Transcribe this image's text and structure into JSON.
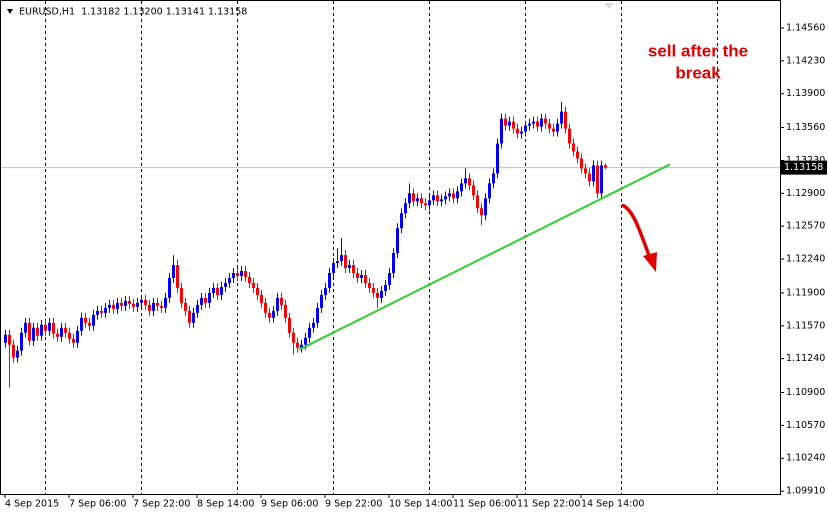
{
  "chart_data": {
    "type": "candlestick",
    "title": "EURUSD,H1  1.13182 1.13200 1.13141 1.13158",
    "annotation": [
      "sell after the",
      "break"
    ],
    "up_color": "#0000ff",
    "down_color": "#ff0000",
    "ylim": [
      1.09881,
      1.14841
    ],
    "yticks": [
      {
        "value": 1.1456,
        "label": "1.14560"
      },
      {
        "value": 1.1423,
        "label": "1.14230"
      },
      {
        "value": 1.139,
        "label": "1.13900"
      },
      {
        "value": 1.1356,
        "label": "1.13560"
      },
      {
        "value": 1.1323,
        "label": "1.13230"
      },
      {
        "value": 1.129,
        "label": "1.12900"
      },
      {
        "value": 1.1257,
        "label": "1.12570"
      },
      {
        "value": 1.1224,
        "label": "1.12240"
      },
      {
        "value": 1.119,
        "label": "1.11900"
      },
      {
        "value": 1.1157,
        "label": "1.11570"
      },
      {
        "value": 1.1124,
        "label": "1.11240"
      },
      {
        "value": 1.109,
        "label": "1.10900"
      },
      {
        "value": 1.1057,
        "label": "1.10570"
      },
      {
        "value": 1.1024,
        "label": "1.10240"
      },
      {
        "value": 1.0991,
        "label": "1.09910"
      }
    ],
    "current_price": {
      "value": 1.13158,
      "label": "1.13158",
      "color": "#c0c0c0"
    },
    "trendline": {
      "x": [
        73.5,
        166.25
      ],
      "y": [
        1.1133,
        1.1319
      ],
      "color": "#33cc33"
    },
    "categories": [
      "4 Sep 2015",
      null,
      null,
      null,
      null,
      null,
      null,
      null,
      null,
      null,
      null,
      null,
      null,
      null,
      null,
      null,
      "7 Sep 06:00",
      null,
      null,
      null,
      null,
      null,
      null,
      null,
      null,
      null,
      null,
      null,
      null,
      null,
      null,
      null,
      "7 Sep 22:00",
      null,
      null,
      null,
      null,
      null,
      null,
      null,
      null,
      null,
      null,
      null,
      null,
      null,
      null,
      null,
      "8 Sep 14:00",
      null,
      null,
      null,
      null,
      null,
      null,
      null,
      null,
      null,
      null,
      null,
      null,
      null,
      null,
      null,
      "9 Sep 06:00",
      null,
      null,
      null,
      null,
      null,
      null,
      null,
      null,
      null,
      null,
      null,
      null,
      null,
      null,
      null,
      "9 Sep 22:00",
      null,
      null,
      null,
      null,
      null,
      null,
      null,
      null,
      null,
      null,
      null,
      null,
      null,
      null,
      null,
      "10 Sep 14:00",
      null,
      null,
      null,
      null,
      null,
      null,
      null,
      null,
      null,
      null,
      null,
      null,
      null,
      null,
      null,
      "11 Sep 06:00",
      null,
      null,
      null,
      null,
      null,
      null,
      null,
      null,
      null,
      null,
      null,
      null,
      null,
      null,
      null,
      "11 Sep 22:00",
      null,
      null,
      null,
      null,
      null,
      null,
      null,
      null,
      null,
      null,
      null,
      null,
      null,
      null,
      null,
      "14 Sep 14:00",
      null,
      null,
      null,
      null,
      null,
      null
    ],
    "open": [
      1.114,
      1.1148,
      1.1138,
      1.1125,
      1.1132,
      1.115,
      1.116,
      1.1142,
      1.1155,
      1.1147,
      1.1158,
      1.1152,
      1.116,
      1.1149,
      1.1146,
      1.1155,
      1.115,
      1.1144,
      1.114,
      1.1152,
      1.1165,
      1.116,
      1.1157,
      1.1168,
      1.1172,
      1.117,
      1.1175,
      1.1178,
      1.1174,
      1.118,
      1.1177,
      1.1182,
      1.1179,
      1.1176,
      1.118,
      1.1183,
      1.1178,
      1.1172,
      1.118,
      1.1177,
      1.1175,
      1.1185,
      1.1205,
      1.1218,
      1.1195,
      1.118,
      1.1172,
      1.116,
      1.117,
      1.1178,
      1.1185,
      1.118,
      1.119,
      1.1195,
      1.1188,
      1.1196,
      1.12,
      1.1205,
      1.121,
      1.1207,
      1.1212,
      1.1206,
      1.12,
      1.1195,
      1.1188,
      1.118,
      1.117,
      1.1165,
      1.1172,
      1.1185,
      1.1178,
      1.1165,
      1.115,
      1.114,
      1.1135,
      1.1138,
      1.1145,
      1.1155,
      1.116,
      1.1175,
      1.1188,
      1.1195,
      1.121,
      1.122,
      1.1222,
      1.1228,
      1.1215,
      1.1218,
      1.121,
      1.1205,
      1.1208,
      1.12,
      1.1195,
      1.119,
      1.1185,
      1.1192,
      1.1198,
      1.121,
      1.123,
      1.1255,
      1.127,
      1.128,
      1.129,
      1.1282,
      1.1285,
      1.128,
      1.1278,
      1.1283,
      1.1288,
      1.1282,
      1.1284,
      1.1287,
      1.129,
      1.1285,
      1.1292,
      1.13,
      1.1305,
      1.1298,
      1.1288,
      1.1275,
      1.1268,
      1.1285,
      1.13,
      1.131,
      1.134,
      1.1365,
      1.1358,
      1.1362,
      1.1355,
      1.135,
      1.1352,
      1.1358,
      1.136,
      1.1362,
      1.1357,
      1.1365,
      1.136,
      1.1355,
      1.1352,
      1.136,
      1.1372,
      1.1355,
      1.134,
      1.1332,
      1.1325,
      1.1315,
      1.131,
      1.1302,
      1.1318,
      1.129,
      1.13182
    ],
    "high": [
      1.1153,
      1.1153,
      1.1143,
      1.1137,
      1.1155,
      1.1165,
      1.1165,
      1.116,
      1.116,
      1.1163,
      1.1163,
      1.1165,
      1.1165,
      1.1154,
      1.116,
      1.116,
      1.1155,
      1.1149,
      1.1157,
      1.117,
      1.117,
      1.1165,
      1.1173,
      1.1177,
      1.1177,
      1.118,
      1.1183,
      1.1183,
      1.1185,
      1.1185,
      1.1187,
      1.1187,
      1.1184,
      1.1185,
      1.1188,
      1.1188,
      1.1183,
      1.1185,
      1.1185,
      1.1182,
      1.119,
      1.121,
      1.1228,
      1.1223,
      1.12,
      1.1185,
      1.1177,
      1.1175,
      1.1183,
      1.119,
      1.119,
      1.1195,
      1.12,
      1.12,
      1.1201,
      1.1205,
      1.121,
      1.1215,
      1.1215,
      1.1217,
      1.1217,
      1.1211,
      1.1205,
      1.12,
      1.1193,
      1.1185,
      1.1175,
      1.1177,
      1.119,
      1.119,
      1.1183,
      1.117,
      1.1155,
      1.1145,
      1.1143,
      1.115,
      1.116,
      1.1165,
      1.118,
      1.1193,
      1.12,
      1.1215,
      1.1225,
      1.1235,
      1.1245,
      1.1233,
      1.1223,
      1.1223,
      1.1215,
      1.1213,
      1.1213,
      1.1205,
      1.12,
      1.1195,
      1.1197,
      1.1203,
      1.1215,
      1.1235,
      1.126,
      1.1275,
      1.1285,
      1.13,
      1.1295,
      1.129,
      1.129,
      1.1285,
      1.1288,
      1.1293,
      1.1293,
      1.1289,
      1.1292,
      1.1295,
      1.1295,
      1.1297,
      1.1305,
      1.1315,
      1.131,
      1.1303,
      1.1293,
      1.128,
      1.129,
      1.1305,
      1.1315,
      1.1345,
      1.137,
      1.137,
      1.1367,
      1.1367,
      1.136,
      1.1357,
      1.1363,
      1.1365,
      1.1367,
      1.1367,
      1.137,
      1.137,
      1.1365,
      1.136,
      1.1365,
      1.1382,
      1.1377,
      1.136,
      1.1345,
      1.1337,
      1.133,
      1.132,
      1.1315,
      1.1323,
      1.1323,
      1.1323,
      1.132
    ],
    "low": [
      1.1135,
      1.1095,
      1.112,
      1.112,
      1.1127,
      1.1145,
      1.1137,
      1.1137,
      1.1142,
      1.1142,
      1.1147,
      1.1147,
      1.1144,
      1.1141,
      1.1141,
      1.1145,
      1.1139,
      1.1135,
      1.1135,
      1.1147,
      1.1155,
      1.1152,
      1.1152,
      1.1163,
      1.1165,
      1.1165,
      1.117,
      1.1169,
      1.1169,
      1.1172,
      1.1172,
      1.1174,
      1.1171,
      1.1171,
      1.1175,
      1.1173,
      1.1167,
      1.1167,
      1.1172,
      1.117,
      1.117,
      1.118,
      1.12,
      1.119,
      1.1175,
      1.1167,
      1.1155,
      1.1155,
      1.1165,
      1.1173,
      1.1175,
      1.1175,
      1.1185,
      1.1183,
      1.1183,
      1.1191,
      1.1195,
      1.12,
      1.1202,
      1.1202,
      1.1201,
      1.1195,
      1.119,
      1.1183,
      1.1175,
      1.1165,
      1.116,
      1.116,
      1.1167,
      1.1173,
      1.116,
      1.1145,
      1.1128,
      1.113,
      1.113,
      1.1133,
      1.114,
      1.115,
      1.1155,
      1.117,
      1.1183,
      1.119,
      1.1205,
      1.1215,
      1.1217,
      1.121,
      1.121,
      1.1205,
      1.12,
      1.12,
      1.1195,
      1.119,
      1.1185,
      1.1175,
      1.118,
      1.1187,
      1.1193,
      1.1205,
      1.1225,
      1.125,
      1.1265,
      1.1275,
      1.1277,
      1.1277,
      1.1275,
      1.1273,
      1.1273,
      1.1278,
      1.1277,
      1.1277,
      1.1279,
      1.1282,
      1.128,
      1.128,
      1.1287,
      1.1295,
      1.1293,
      1.1283,
      1.127,
      1.1258,
      1.1263,
      1.128,
      1.1295,
      1.1305,
      1.1335,
      1.1353,
      1.1353,
      1.135,
      1.1345,
      1.1345,
      1.1347,
      1.1353,
      1.1355,
      1.1352,
      1.1352,
      1.1355,
      1.135,
      1.1347,
      1.1347,
      1.1355,
      1.135,
      1.1335,
      1.1327,
      1.132,
      1.131,
      1.1305,
      1.1297,
      1.1297,
      1.1285,
      1.1285,
      1.13141
    ],
    "close": [
      1.1148,
      1.1138,
      1.1125,
      1.1132,
      1.115,
      1.116,
      1.1142,
      1.1155,
      1.1147,
      1.1158,
      1.1152,
      1.116,
      1.1149,
      1.1146,
      1.1155,
      1.115,
      1.1144,
      1.114,
      1.1152,
      1.1165,
      1.116,
      1.1157,
      1.1168,
      1.1172,
      1.117,
      1.1175,
      1.1178,
      1.1174,
      1.118,
      1.1177,
      1.1182,
      1.1179,
      1.1176,
      1.118,
      1.1183,
      1.1178,
      1.1172,
      1.118,
      1.1177,
      1.1175,
      1.1185,
      1.1205,
      1.1218,
      1.1195,
      1.118,
      1.1172,
      1.116,
      1.117,
      1.1178,
      1.1185,
      1.118,
      1.119,
      1.1195,
      1.1188,
      1.1196,
      1.12,
      1.1205,
      1.121,
      1.1207,
      1.1212,
      1.1206,
      1.12,
      1.1195,
      1.1188,
      1.118,
      1.117,
      1.1165,
      1.1172,
      1.1185,
      1.1178,
      1.1165,
      1.115,
      1.114,
      1.1135,
      1.1138,
      1.1145,
      1.1155,
      1.116,
      1.1175,
      1.1188,
      1.1195,
      1.121,
      1.122,
      1.1222,
      1.1228,
      1.1215,
      1.1218,
      1.121,
      1.1205,
      1.1208,
      1.12,
      1.1195,
      1.119,
      1.1185,
      1.1192,
      1.1198,
      1.121,
      1.123,
      1.1255,
      1.127,
      1.128,
      1.129,
      1.1282,
      1.1285,
      1.128,
      1.1278,
      1.1283,
      1.1288,
      1.1282,
      1.1284,
      1.1287,
      1.129,
      1.1285,
      1.1292,
      1.13,
      1.1305,
      1.1298,
      1.1288,
      1.1275,
      1.1268,
      1.1285,
      1.13,
      1.131,
      1.134,
      1.1365,
      1.1358,
      1.1362,
      1.1355,
      1.135,
      1.1352,
      1.1358,
      1.136,
      1.1362,
      1.1357,
      1.1365,
      1.136,
      1.1355,
      1.1352,
      1.136,
      1.1372,
      1.1355,
      1.134,
      1.1332,
      1.1325,
      1.1315,
      1.131,
      1.1302,
      1.1318,
      1.129,
      1.1318,
      1.13158
    ]
  }
}
